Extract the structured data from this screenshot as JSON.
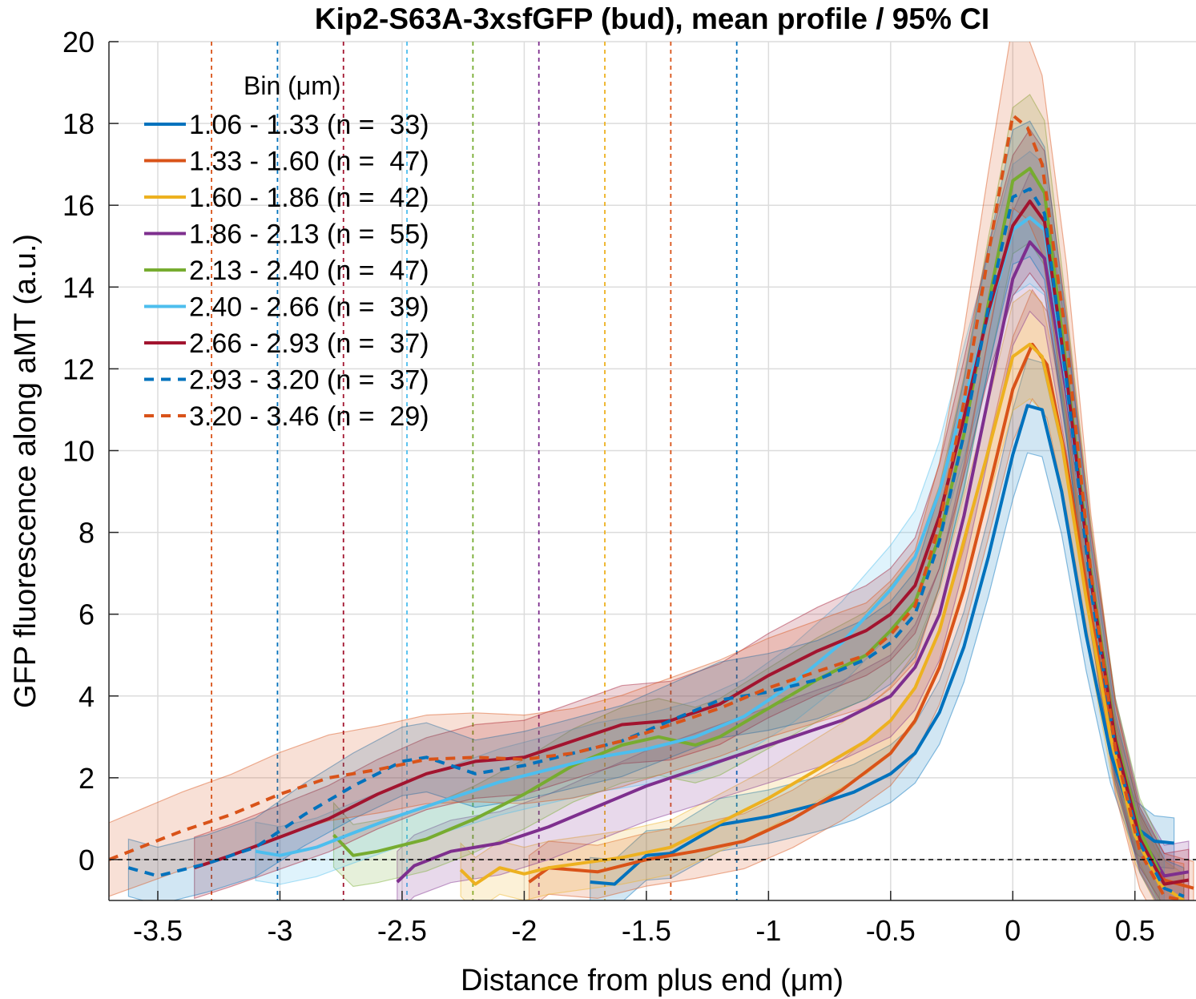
{
  "chart_data": {
    "type": "line",
    "title": "Kip2-S63A-3xsfGFP (bud), mean profile / 95% CI",
    "xlabel": "Distance from plus end (μm)",
    "ylabel": "GFP fluorescence along aMT (a.u.)",
    "xlim": [
      -3.7,
      0.75
    ],
    "ylim": [
      -1,
      20
    ],
    "xticks": [
      -3.5,
      -3,
      -2.5,
      -2,
      -1.5,
      -1,
      -0.5,
      0,
      0.5
    ],
    "xtick_labels": [
      "-3.5",
      "-3",
      "-2.5",
      "-2",
      "-1.5",
      "-1",
      "-0.5",
      "0",
      "0.5"
    ],
    "yticks": [
      0,
      2,
      4,
      6,
      8,
      10,
      12,
      14,
      16,
      18,
      20
    ],
    "ytick_labels": [
      "0",
      "2",
      "4",
      "6",
      "8",
      "10",
      "12",
      "14",
      "16",
      "18",
      "20"
    ],
    "grid": true,
    "zero_line": 0,
    "legend": {
      "title": "Bin (μm)",
      "location": "top-left"
    },
    "series": [
      {
        "name": "1.06 - 1.33 (n =  33)",
        "color": "#0072BD",
        "style": "solid",
        "ci_half_width": 0.6,
        "cutoff_line": -1.13,
        "points": [
          [
            -1.73,
            -0.55
          ],
          [
            -1.63,
            -0.6
          ],
          [
            -1.5,
            0.1
          ],
          [
            -1.4,
            0.15
          ],
          [
            -1.2,
            0.85
          ],
          [
            -1.0,
            1.05
          ],
          [
            -0.8,
            1.35
          ],
          [
            -0.65,
            1.65
          ],
          [
            -0.5,
            2.1
          ],
          [
            -0.4,
            2.6
          ],
          [
            -0.3,
            3.6
          ],
          [
            -0.2,
            5.2
          ],
          [
            -0.1,
            7.4
          ],
          [
            0.0,
            9.9
          ],
          [
            0.06,
            11.1
          ],
          [
            0.12,
            11.0
          ],
          [
            0.2,
            9.0
          ],
          [
            0.3,
            5.5
          ],
          [
            0.4,
            2.6
          ],
          [
            0.5,
            0.8
          ],
          [
            0.58,
            0.45
          ],
          [
            0.66,
            0.4
          ]
        ]
      },
      {
        "name": "1.33 - 1.60 (n =  47)",
        "color": "#D95319",
        "style": "solid",
        "ci_half_width": 0.65,
        "cutoff_line": -1.4,
        "points": [
          [
            -1.98,
            -0.55
          ],
          [
            -1.9,
            -0.2
          ],
          [
            -1.7,
            -0.3
          ],
          [
            -1.5,
            0.0
          ],
          [
            -1.3,
            0.2
          ],
          [
            -1.1,
            0.45
          ],
          [
            -0.9,
            1.0
          ],
          [
            -0.7,
            1.7
          ],
          [
            -0.5,
            2.6
          ],
          [
            -0.4,
            3.4
          ],
          [
            -0.3,
            4.7
          ],
          [
            -0.2,
            6.6
          ],
          [
            -0.1,
            9.0
          ],
          [
            0.0,
            11.5
          ],
          [
            0.08,
            12.6
          ],
          [
            0.14,
            12.1
          ],
          [
            0.22,
            9.7
          ],
          [
            0.32,
            6.0
          ],
          [
            0.42,
            2.6
          ],
          [
            0.52,
            0.5
          ],
          [
            0.62,
            -0.5
          ],
          [
            0.74,
            -0.7
          ]
        ]
      },
      {
        "name": "1.60 - 1.86 (n =  42)",
        "color": "#EDB120",
        "style": "solid",
        "ci_half_width": 0.65,
        "cutoff_line": -1.67,
        "points": [
          [
            -2.26,
            -0.25
          ],
          [
            -2.2,
            -0.6
          ],
          [
            -2.1,
            -0.2
          ],
          [
            -2.0,
            -0.35
          ],
          [
            -1.9,
            -0.2
          ],
          [
            -1.6,
            0.05
          ],
          [
            -1.4,
            0.3
          ],
          [
            -1.2,
            0.9
          ],
          [
            -1.0,
            1.5
          ],
          [
            -0.8,
            2.2
          ],
          [
            -0.6,
            2.9
          ],
          [
            -0.5,
            3.4
          ],
          [
            -0.4,
            4.2
          ],
          [
            -0.3,
            5.6
          ],
          [
            -0.2,
            7.8
          ],
          [
            -0.1,
            10.0
          ],
          [
            0.0,
            12.3
          ],
          [
            0.07,
            12.6
          ],
          [
            0.12,
            12.3
          ],
          [
            0.2,
            10.2
          ],
          [
            0.3,
            6.4
          ],
          [
            0.4,
            3.0
          ],
          [
            0.5,
            0.6
          ],
          [
            0.6,
            -0.6
          ],
          [
            0.7,
            -1.0
          ]
        ]
      },
      {
        "name": "1.86 - 2.13 (n =  55)",
        "color": "#7E2F8E",
        "style": "solid",
        "ci_half_width": 0.75,
        "cutoff_line": -1.94,
        "points": [
          [
            -2.52,
            -0.55
          ],
          [
            -2.45,
            -0.15
          ],
          [
            -2.3,
            0.2
          ],
          [
            -2.1,
            0.4
          ],
          [
            -1.9,
            0.8
          ],
          [
            -1.7,
            1.3
          ],
          [
            -1.5,
            1.8
          ],
          [
            -1.3,
            2.2
          ],
          [
            -1.1,
            2.6
          ],
          [
            -0.9,
            3.0
          ],
          [
            -0.7,
            3.4
          ],
          [
            -0.5,
            4.0
          ],
          [
            -0.4,
            4.7
          ],
          [
            -0.3,
            6.0
          ],
          [
            -0.2,
            8.4
          ],
          [
            -0.1,
            11.3
          ],
          [
            0.0,
            14.2
          ],
          [
            0.07,
            15.1
          ],
          [
            0.13,
            14.7
          ],
          [
            0.22,
            11.4
          ],
          [
            0.32,
            6.9
          ],
          [
            0.42,
            3.0
          ],
          [
            0.52,
            0.6
          ],
          [
            0.62,
            -0.4
          ],
          [
            0.72,
            -0.3
          ]
        ]
      },
      {
        "name": "2.13 - 2.40 (n =  47)",
        "color": "#77AC30",
        "style": "solid",
        "ci_half_width": 0.75,
        "cutoff_line": -2.21,
        "points": [
          [
            -2.78,
            0.6
          ],
          [
            -2.7,
            0.1
          ],
          [
            -2.6,
            0.2
          ],
          [
            -2.4,
            0.5
          ],
          [
            -2.2,
            1.0
          ],
          [
            -2.0,
            1.6
          ],
          [
            -1.8,
            2.3
          ],
          [
            -1.6,
            2.8
          ],
          [
            -1.45,
            3.0
          ],
          [
            -1.3,
            2.8
          ],
          [
            -1.2,
            3.0
          ],
          [
            -1.0,
            3.7
          ],
          [
            -0.8,
            4.4
          ],
          [
            -0.6,
            5.0
          ],
          [
            -0.5,
            5.6
          ],
          [
            -0.4,
            6.3
          ],
          [
            -0.3,
            7.9
          ],
          [
            -0.2,
            10.4
          ],
          [
            -0.1,
            13.6
          ],
          [
            0.0,
            16.6
          ],
          [
            0.07,
            16.9
          ],
          [
            0.13,
            16.3
          ],
          [
            0.22,
            12.0
          ],
          [
            0.32,
            7.0
          ],
          [
            0.42,
            3.0
          ],
          [
            0.52,
            0.7
          ],
          [
            0.6,
            -0.3
          ]
        ]
      },
      {
        "name": "2.40 - 2.66 (n =  39)",
        "color": "#4DBEEE",
        "style": "solid",
        "ci_half_width": 0.7,
        "cutoff_line": -2.48,
        "points": [
          [
            -3.1,
            0.2
          ],
          [
            -3.0,
            0.1
          ],
          [
            -2.85,
            0.3
          ],
          [
            -2.7,
            0.65
          ],
          [
            -2.5,
            1.1
          ],
          [
            -2.3,
            1.5
          ],
          [
            -2.1,
            1.9
          ],
          [
            -1.9,
            2.2
          ],
          [
            -1.7,
            2.5
          ],
          [
            -1.5,
            2.7
          ],
          [
            -1.3,
            3.0
          ],
          [
            -1.1,
            3.5
          ],
          [
            -0.9,
            4.3
          ],
          [
            -0.7,
            5.3
          ],
          [
            -0.5,
            6.6
          ],
          [
            -0.4,
            7.4
          ],
          [
            -0.3,
            9.0
          ],
          [
            -0.2,
            11.2
          ],
          [
            -0.1,
            13.3
          ],
          [
            0.0,
            15.4
          ],
          [
            0.07,
            15.7
          ],
          [
            0.13,
            15.4
          ],
          [
            0.22,
            11.6
          ],
          [
            0.32,
            6.7
          ],
          [
            0.42,
            2.9
          ],
          [
            0.52,
            0.5
          ],
          [
            0.62,
            -0.6
          ]
        ]
      },
      {
        "name": "2.66 - 2.93 (n =  37)",
        "color": "#A2142F",
        "style": "solid",
        "ci_half_width": 0.75,
        "cutoff_line": -2.74,
        "points": [
          [
            -3.35,
            -0.2
          ],
          [
            -3.2,
            0.1
          ],
          [
            -3.0,
            0.55
          ],
          [
            -2.8,
            1.0
          ],
          [
            -2.6,
            1.6
          ],
          [
            -2.4,
            2.1
          ],
          [
            -2.2,
            2.4
          ],
          [
            -2.0,
            2.5
          ],
          [
            -1.8,
            2.9
          ],
          [
            -1.6,
            3.3
          ],
          [
            -1.4,
            3.4
          ],
          [
            -1.2,
            3.8
          ],
          [
            -1.0,
            4.5
          ],
          [
            -0.8,
            5.1
          ],
          [
            -0.6,
            5.6
          ],
          [
            -0.5,
            6.0
          ],
          [
            -0.4,
            6.7
          ],
          [
            -0.3,
            8.4
          ],
          [
            -0.2,
            10.8
          ],
          [
            -0.1,
            13.4
          ],
          [
            0.0,
            15.5
          ],
          [
            0.07,
            16.1
          ],
          [
            0.13,
            15.6
          ],
          [
            0.22,
            11.8
          ],
          [
            0.32,
            6.8
          ],
          [
            0.42,
            2.9
          ],
          [
            0.52,
            0.5
          ],
          [
            0.62,
            -0.6
          ],
          [
            0.72,
            -0.5
          ]
        ]
      },
      {
        "name": "2.93 - 3.20 (n =  37)",
        "color": "#0072BD",
        "style": "dashed",
        "ci_half_width": 0.7,
        "cutoff_line": -3.01,
        "points": [
          [
            -3.62,
            -0.2
          ],
          [
            -3.5,
            -0.4
          ],
          [
            -3.3,
            -0.1
          ],
          [
            -3.1,
            0.3
          ],
          [
            -2.9,
            1.1
          ],
          [
            -2.7,
            1.8
          ],
          [
            -2.5,
            2.4
          ],
          [
            -2.4,
            2.5
          ],
          [
            -2.2,
            2.1
          ],
          [
            -2.0,
            2.3
          ],
          [
            -1.8,
            2.6
          ],
          [
            -1.6,
            2.9
          ],
          [
            -1.4,
            3.4
          ],
          [
            -1.2,
            3.9
          ],
          [
            -1.0,
            4.1
          ],
          [
            -0.8,
            4.4
          ],
          [
            -0.6,
            4.9
          ],
          [
            -0.5,
            5.3
          ],
          [
            -0.4,
            6.0
          ],
          [
            -0.3,
            7.8
          ],
          [
            -0.2,
            10.4
          ],
          [
            -0.1,
            13.5
          ],
          [
            0.0,
            16.2
          ],
          [
            0.07,
            16.4
          ],
          [
            0.13,
            15.8
          ],
          [
            0.22,
            11.7
          ],
          [
            0.32,
            6.6
          ],
          [
            0.42,
            2.7
          ],
          [
            0.52,
            0.4
          ],
          [
            0.62,
            -0.7
          ],
          [
            0.7,
            -0.9
          ]
        ]
      },
      {
        "name": "3.20 - 3.46 (n =  29)",
        "color": "#D95319",
        "style": "dashed",
        "ci_half_width": 0.9,
        "cutoff_line": -3.28,
        "points": [
          [
            -3.7,
            0.0
          ],
          [
            -3.55,
            0.35
          ],
          [
            -3.4,
            0.7
          ],
          [
            -3.2,
            1.1
          ],
          [
            -3.0,
            1.6
          ],
          [
            -2.8,
            2.0
          ],
          [
            -2.6,
            2.2
          ],
          [
            -2.4,
            2.45
          ],
          [
            -2.2,
            2.5
          ],
          [
            -2.0,
            2.45
          ],
          [
            -1.8,
            2.6
          ],
          [
            -1.6,
            2.9
          ],
          [
            -1.4,
            3.3
          ],
          [
            -1.2,
            3.7
          ],
          [
            -1.0,
            4.2
          ],
          [
            -0.8,
            4.6
          ],
          [
            -0.6,
            5.0
          ],
          [
            -0.5,
            5.5
          ],
          [
            -0.4,
            6.2
          ],
          [
            -0.3,
            8.2
          ],
          [
            -0.2,
            11.2
          ],
          [
            -0.1,
            14.8
          ],
          [
            0.0,
            18.2
          ],
          [
            0.06,
            17.9
          ],
          [
            0.12,
            17.0
          ],
          [
            0.22,
            12.7
          ],
          [
            0.32,
            7.0
          ],
          [
            0.42,
            2.7
          ],
          [
            0.52,
            0.2
          ],
          [
            0.62,
            -0.9
          ],
          [
            0.7,
            -1.0
          ]
        ]
      }
    ]
  }
}
